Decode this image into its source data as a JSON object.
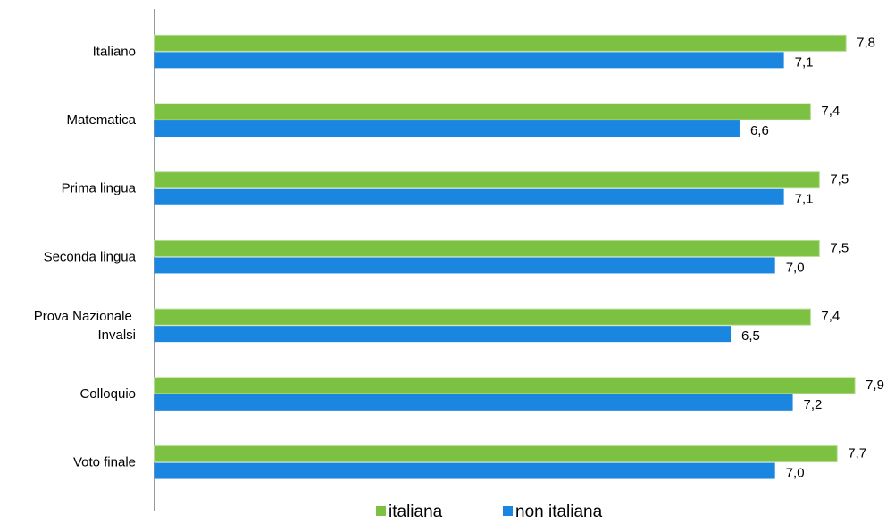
{
  "chart_data": {
    "type": "hbar",
    "categories": [
      "Italiano",
      "Matematica",
      "Prima lingua",
      "Seconda lingua",
      "Prova Nazionale Invalsi",
      "Colloquio",
      "Voto finale"
    ],
    "series": [
      {
        "name": "italiana",
        "color": "#7dc142",
        "values": [
          7.8,
          7.4,
          7.5,
          7.5,
          7.4,
          7.9,
          7.7
        ],
        "value_labels": [
          "7,8",
          "7,4",
          "7,5",
          "7,5",
          "7,4",
          "7,9",
          "7,7"
        ]
      },
      {
        "name": "non italiana",
        "color": "#1a86e0",
        "values": [
          7.1,
          6.6,
          7.1,
          7.0,
          6.5,
          7.2,
          7.0
        ],
        "value_labels": [
          "7,1",
          "6,6",
          "7,1",
          "7,0",
          "6,5",
          "7,2",
          "7,0"
        ]
      }
    ],
    "xlim": [
      0,
      8
    ],
    "legend": "bottom"
  }
}
